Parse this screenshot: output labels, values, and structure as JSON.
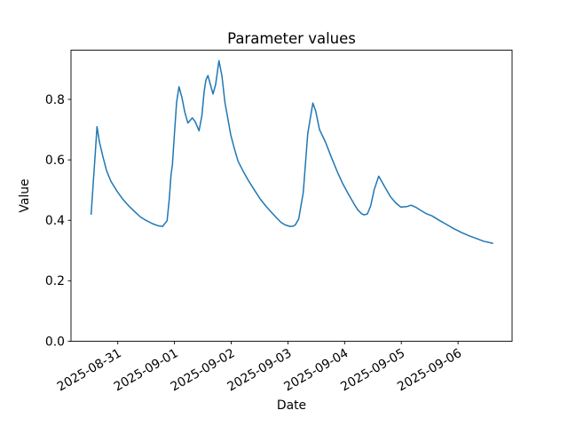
{
  "chart_data": {
    "type": "line",
    "title": "Parameter values",
    "xlabel": "Date",
    "ylabel": "Value",
    "x_axis_unit": "days since 2025-08-31 00:00",
    "xlim": [
      -0.825,
      6.953
    ],
    "ylim": [
      0.0,
      0.963
    ],
    "x_ticks": [
      0,
      1,
      2,
      3,
      4,
      5,
      6
    ],
    "x_tick_labels": [
      "2025-08-31",
      "2025-09-01",
      "2025-09-02",
      "2025-09-03",
      "2025-09-04",
      "2025-09-05",
      "2025-09-06"
    ],
    "x_tick_rotation_deg": 30,
    "y_ticks": [
      0.0,
      0.2,
      0.4,
      0.6,
      0.8
    ],
    "y_tick_labels": [
      "0.0",
      "0.2",
      "0.4",
      "0.6",
      "0.8"
    ],
    "grid": false,
    "legend": false,
    "line_color": "#1f77b4",
    "series": [
      {
        "name": "parameter-values",
        "x": [
          -0.47,
          -0.43,
          -0.4,
          -0.366,
          -0.324,
          -0.261,
          -0.199,
          -0.12,
          -0.016,
          0.088,
          0.192,
          0.297,
          0.401,
          0.505,
          0.61,
          0.713,
          0.792,
          0.87,
          0.908,
          0.939,
          0.964,
          1.002,
          1.038,
          1.08,
          1.132,
          1.183,
          1.236,
          1.315,
          1.366,
          1.434,
          1.484,
          1.523,
          1.554,
          1.59,
          1.632,
          1.679,
          1.726,
          1.784,
          1.836,
          1.888,
          1.992,
          2.055,
          2.122,
          2.21,
          2.305,
          2.41,
          2.513,
          2.62,
          2.723,
          2.8,
          2.879,
          2.95,
          3.036,
          3.1,
          3.135,
          3.19,
          3.271,
          3.35,
          3.44,
          3.49,
          3.557,
          3.662,
          3.77,
          3.87,
          3.97,
          4.078,
          4.18,
          4.235,
          4.3,
          4.339,
          4.4,
          4.46,
          4.52,
          4.601,
          4.704,
          4.809,
          4.9,
          4.992,
          5.095,
          5.174,
          5.252,
          5.35,
          5.45,
          5.54,
          5.67,
          5.8,
          5.93,
          6.061,
          6.19,
          6.322,
          6.45,
          6.61
        ],
        "y": [
          0.42,
          0.53,
          0.615,
          0.71,
          0.66,
          0.61,
          0.565,
          0.529,
          0.497,
          0.47,
          0.448,
          0.429,
          0.411,
          0.399,
          0.389,
          0.382,
          0.38,
          0.399,
          0.47,
          0.55,
          0.585,
          0.693,
          0.791,
          0.842,
          0.806,
          0.757,
          0.722,
          0.739,
          0.726,
          0.696,
          0.747,
          0.825,
          0.864,
          0.879,
          0.85,
          0.818,
          0.85,
          0.928,
          0.879,
          0.791,
          0.683,
          0.638,
          0.595,
          0.563,
          0.531,
          0.5,
          0.47,
          0.445,
          0.424,
          0.408,
          0.393,
          0.385,
          0.38,
          0.381,
          0.386,
          0.405,
          0.492,
          0.688,
          0.788,
          0.762,
          0.7,
          0.659,
          0.607,
          0.561,
          0.52,
          0.483,
          0.45,
          0.434,
          0.422,
          0.418,
          0.421,
          0.448,
          0.5,
          0.546,
          0.512,
          0.478,
          0.458,
          0.4435,
          0.4455,
          0.45,
          0.4435,
          0.432,
          0.421,
          0.415,
          0.4,
          0.386,
          0.372,
          0.36,
          0.349,
          0.34,
          0.331,
          0.324
        ]
      }
    ]
  }
}
